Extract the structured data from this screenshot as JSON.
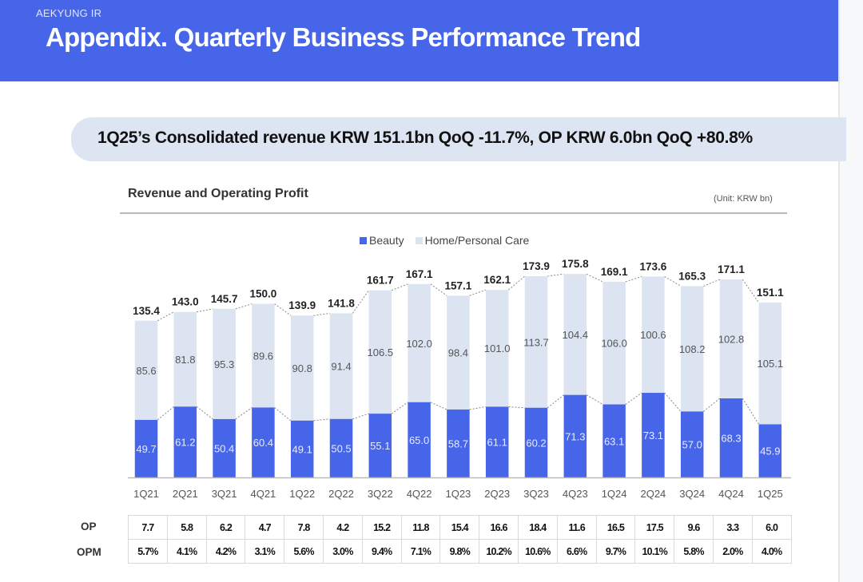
{
  "header": {
    "brand": "AEKYUNG IR",
    "title": "Appendix.  Quarterly Business Performance Trend"
  },
  "banner": {
    "text": "1Q25’s Consolidated revenue KRW 151.1bn QoQ -11.7%, OP KRW 6.0bn QoQ +80.8%"
  },
  "colors": {
    "header_bg": "#4665e8",
    "beauty": "#4665e8",
    "home_personal_care": "#dce4f2",
    "banner_bg": "#dde5f3"
  },
  "chart_data": {
    "type": "bar",
    "stacked": true,
    "title": "Revenue and Operating Profit",
    "unit": "(Unit: KRW bn)",
    "xlabel": "",
    "ylabel": "",
    "ylim": [
      0,
      190
    ],
    "grid": false,
    "legend_position": "top-center",
    "categories": [
      "1Q21",
      "2Q21",
      "3Q21",
      "4Q21",
      "1Q22",
      "2Q22",
      "3Q22",
      "4Q22",
      "1Q23",
      "2Q23",
      "3Q23",
      "4Q23",
      "1Q24",
      "2Q24",
      "3Q24",
      "4Q24",
      "1Q25"
    ],
    "series": [
      {
        "name": "Beauty",
        "values": [
          49.7,
          61.2,
          50.4,
          60.4,
          49.1,
          50.5,
          55.1,
          65.0,
          58.7,
          61.1,
          60.2,
          71.3,
          63.1,
          73.1,
          57.0,
          68.3,
          45.9
        ]
      },
      {
        "name": "Home/Personal Care",
        "values": [
          85.6,
          81.8,
          95.3,
          89.6,
          90.8,
          91.4,
          106.5,
          102.0,
          98.4,
          101.0,
          113.7,
          104.4,
          106.0,
          100.6,
          108.2,
          102.8,
          105.1
        ]
      }
    ],
    "totals": [
      135.4,
      143.0,
      145.7,
      150.0,
      139.9,
      141.8,
      161.7,
      167.1,
      157.1,
      162.1,
      173.9,
      175.8,
      169.1,
      173.6,
      165.3,
      171.1,
      151.1
    ],
    "annotations": "Dotted lines connect bar tops (totals) and Beauty segment tops"
  },
  "table": {
    "rows": [
      {
        "label": "OP",
        "values": [
          "7.7",
          "5.8",
          "6.2",
          "4.7",
          "7.8",
          "4.2",
          "15.2",
          "11.8",
          "15.4",
          "16.6",
          "18.4",
          "11.6",
          "16.5",
          "17.5",
          "9.6",
          "3.3",
          "6.0"
        ]
      },
      {
        "label": "OPM",
        "values": [
          "5.7%",
          "4.1%",
          "4.2%",
          "3.1%",
          "5.6%",
          "3.0%",
          "9.4%",
          "7.1%",
          "9.8%",
          "10.2%",
          "10.6%",
          "6.6%",
          "9.7%",
          "10.1%",
          "5.8%",
          "2.0%",
          "4.0%"
        ]
      }
    ]
  }
}
